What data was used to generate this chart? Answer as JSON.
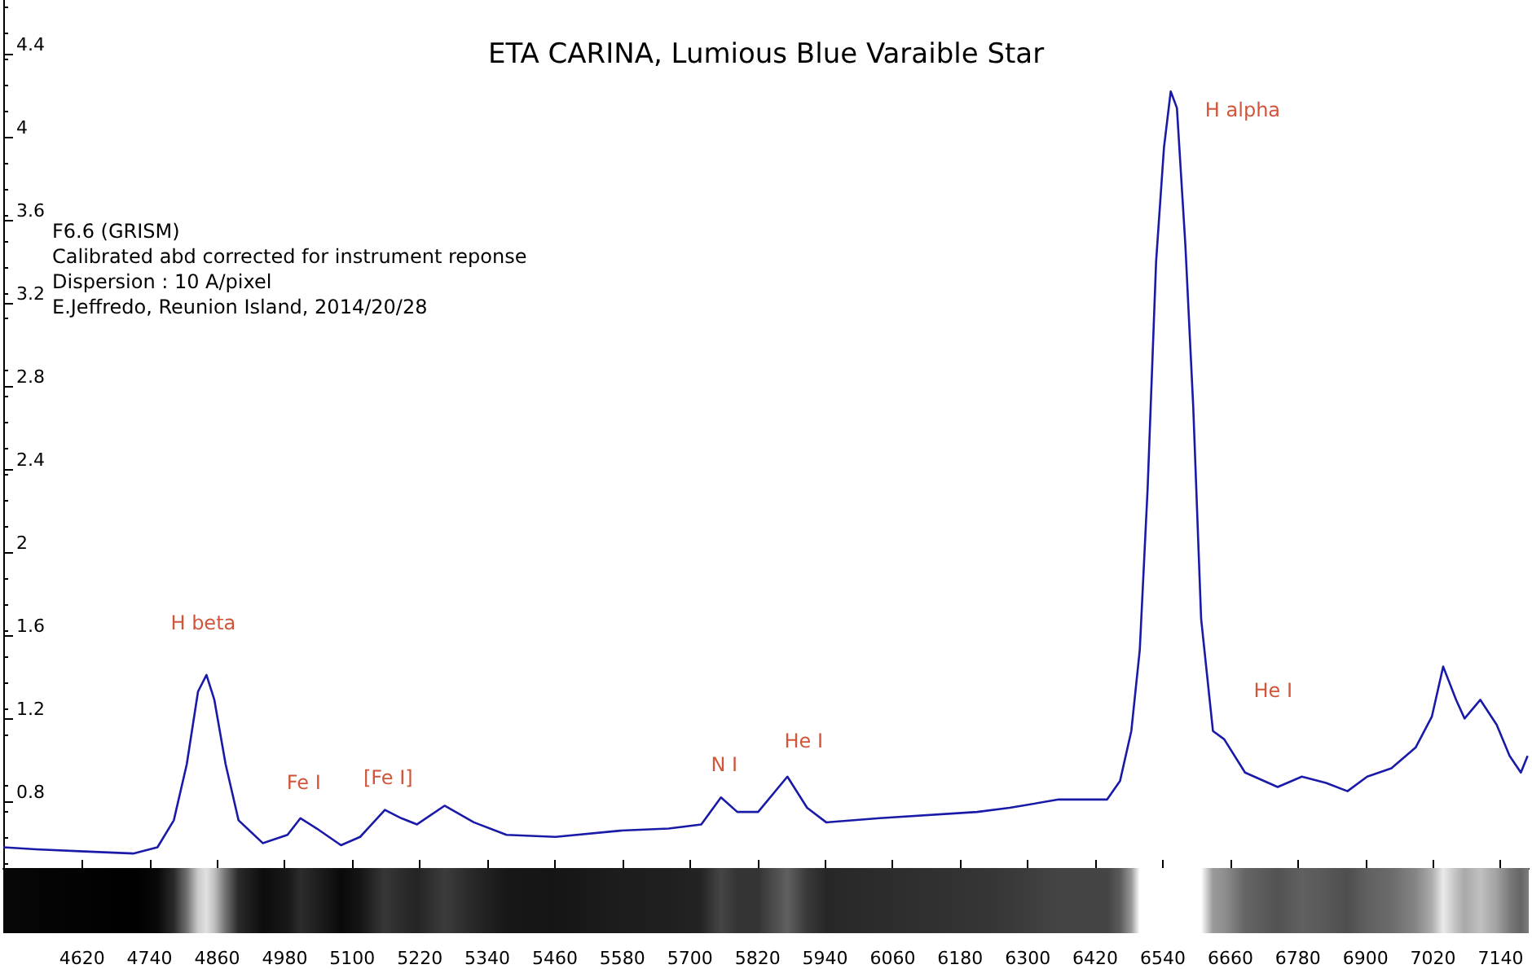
{
  "chart_data": {
    "type": "line",
    "title": "ETA CARINA, Lumious Blue Varaible Star",
    "x": [
      4480,
      4538,
      4624,
      4711,
      4754,
      4783,
      4806,
      4826,
      4841,
      4855,
      4875,
      4898,
      4941,
      4985,
      5008,
      5037,
      5080,
      5114,
      5158,
      5187,
      5215,
      5264,
      5316,
      5374,
      5461,
      5576,
      5662,
      5720,
      5755,
      5784,
      5821,
      5873,
      5908,
      5942,
      6037,
      6210,
      6268,
      6355,
      6441,
      6464,
      6484,
      6499,
      6513,
      6528,
      6542,
      6554,
      6565,
      6580,
      6594,
      6608,
      6629,
      6649,
      6686,
      6744,
      6787,
      6830,
      6868,
      6903,
      6946,
      6989,
      7018,
      7038,
      7061,
      7076,
      7104,
      7133,
      7156,
      7176,
      7188
    ],
    "series": [
      {
        "color": "#1a1aa8",
        "values": [
          0.58,
          0.57,
          0.56,
          0.55,
          0.58,
          0.71,
          0.98,
          1.33,
          1.41,
          1.29,
          0.98,
          0.71,
          0.6,
          0.64,
          0.72,
          0.67,
          0.59,
          0.63,
          0.76,
          0.72,
          0.69,
          0.78,
          0.7,
          0.64,
          0.63,
          0.66,
          0.67,
          0.69,
          0.82,
          0.75,
          0.75,
          0.92,
          0.77,
          0.7,
          0.72,
          0.75,
          0.77,
          0.81,
          0.81,
          0.9,
          1.14,
          1.53,
          2.31,
          3.4,
          3.95,
          4.22,
          4.14,
          3.48,
          2.7,
          1.68,
          1.14,
          1.1,
          0.94,
          0.87,
          0.92,
          0.89,
          0.85,
          0.92,
          0.96,
          1.06,
          1.21,
          1.45,
          1.29,
          1.2,
          1.29,
          1.17,
          1.02,
          0.94,
          1.02
        ]
      }
    ],
    "xlim": [
      4480,
      7190
    ],
    "xticks": [
      4620,
      4740,
      4860,
      4980,
      5100,
      5220,
      5340,
      5460,
      5580,
      5700,
      5820,
      5940,
      6060,
      6180,
      6300,
      6420,
      6540,
      6660,
      6780,
      6900,
      7020,
      7140
    ],
    "ylim": [
      0.48,
      4.66
    ],
    "yticks": [
      0.8,
      1.2,
      1.6,
      2,
      2.4,
      2.8,
      3.2,
      3.6,
      4,
      4.4
    ],
    "grid": false,
    "marker": "none",
    "line_style": "solid",
    "annotations": [
      "F6.6 (GRISM)",
      "Calibrated abd corrected for instrument reponse",
      "Dispersion : 10 A/pixel",
      "E.Jeffredo, Reunion Island, 2014/20/28",
      {
        "text": "H beta",
        "x": 4841,
        "y": 1.41
      },
      {
        "text": "Fe I",
        "x": 5008,
        "y": 0.72
      },
      {
        "text": "[Fe I]",
        "x": 5158,
        "y": 0.76
      },
      {
        "text": "N I",
        "x": 5755,
        "y": 0.82
      },
      {
        "text": "He I",
        "x": 5873,
        "y": 0.92
      },
      {
        "text": "H alpha",
        "x": 6566,
        "y": 4.1
      },
      {
        "text": "He I",
        "x": 6649,
        "y": 1.1
      }
    ]
  }
}
